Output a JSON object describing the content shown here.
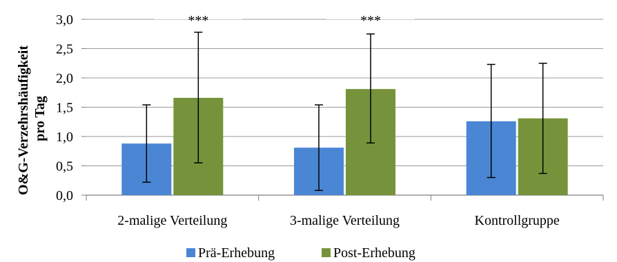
{
  "chart_data": {
    "type": "bar",
    "categories": [
      "2-malige Verteilung",
      "3-malige Verteilung",
      "Kontrollgruppe"
    ],
    "series": [
      {
        "name": "Prä-Erhebung",
        "color": "#4A86D4",
        "values": [
          0.88,
          0.81,
          1.26
        ],
        "error_low": [
          0.22,
          0.08,
          0.3
        ],
        "error_high": [
          1.54,
          1.54,
          2.23
        ]
      },
      {
        "name": "Post-Erhebung",
        "color": "#76933C",
        "values": [
          1.66,
          1.81,
          1.31
        ],
        "error_low": [
          0.55,
          0.89,
          0.37
        ],
        "error_high": [
          2.78,
          2.75,
          2.25
        ]
      }
    ],
    "annotations": [
      "***",
      "***",
      ""
    ],
    "ylabel": "O&G-Verzehrshäufigkeit pro Tag",
    "ylabel_line1": "O&G-Verzehrshäufigkeit",
    "ylabel_line2": "pro Tag",
    "ylim": [
      0,
      3
    ],
    "yticks": [
      "0,0",
      "0,5",
      "1,0",
      "1,5",
      "2,0",
      "2,5",
      "3,0"
    ],
    "grid": true,
    "legend_position": "bottom"
  }
}
